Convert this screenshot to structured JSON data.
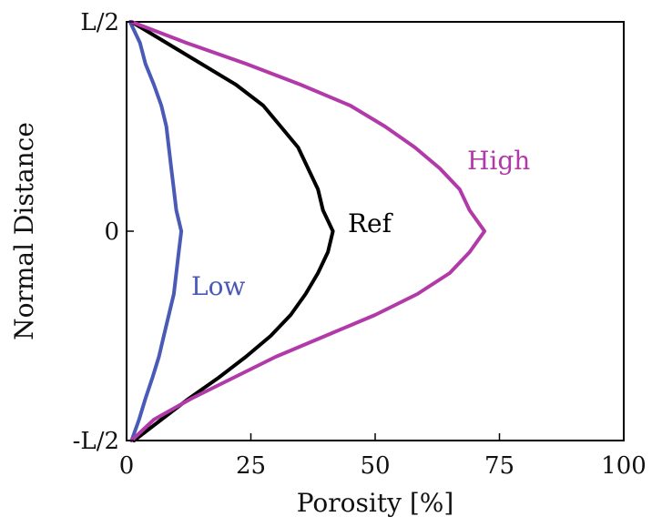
{
  "chart_data": {
    "type": "line",
    "title": "",
    "xlabel": "Porosity [%]",
    "ylabel": "Normal Distance",
    "xlim": [
      0,
      100
    ],
    "ylim": [
      -0.5,
      0.5
    ],
    "x_ticks": [
      0,
      25,
      50,
      75,
      100
    ],
    "x_tick_labels": [
      "0",
      "25",
      "50",
      "75",
      "100"
    ],
    "y_ticks": [
      -0.5,
      0,
      0.5
    ],
    "y_tick_labels": [
      "-L/2",
      "0",
      "L/2"
    ],
    "grid": false,
    "legend": "none",
    "series": [
      {
        "name": "Low",
        "color": "#4a5bb7",
        "points": [
          [
            0.7,
            0.5
          ],
          [
            2.7,
            0.45
          ],
          [
            3.8,
            0.4
          ],
          [
            5.5,
            0.35
          ],
          [
            7.0,
            0.3
          ],
          [
            8.0,
            0.25
          ],
          [
            8.5,
            0.2
          ],
          [
            9.0,
            0.15
          ],
          [
            9.5,
            0.1
          ],
          [
            10.0,
            0.05
          ],
          [
            11.0,
            0.0
          ],
          [
            10.5,
            -0.05
          ],
          [
            10.0,
            -0.1
          ],
          [
            9.5,
            -0.15
          ],
          [
            8.5,
            -0.2
          ],
          [
            7.5,
            -0.25
          ],
          [
            6.5,
            -0.3
          ],
          [
            5.2,
            -0.35
          ],
          [
            3.8,
            -0.4
          ],
          [
            2.5,
            -0.45
          ],
          [
            1.0,
            -0.5
          ]
        ]
      },
      {
        "name": "Ref",
        "color": "#000000",
        "points": [
          [
            1.0,
            0.5
          ],
          [
            8.0,
            0.45
          ],
          [
            15.0,
            0.4
          ],
          [
            22.0,
            0.35
          ],
          [
            27.5,
            0.3
          ],
          [
            31.0,
            0.25
          ],
          [
            34.5,
            0.2
          ],
          [
            36.5,
            0.15
          ],
          [
            38.5,
            0.1
          ],
          [
            39.5,
            0.05
          ],
          [
            41.5,
            0.0
          ],
          [
            40.5,
            -0.05
          ],
          [
            38.5,
            -0.1
          ],
          [
            36.0,
            -0.15
          ],
          [
            33.0,
            -0.2
          ],
          [
            29.0,
            -0.25
          ],
          [
            24.0,
            -0.3
          ],
          [
            18.5,
            -0.35
          ],
          [
            12.5,
            -0.4
          ],
          [
            7.0,
            -0.45
          ],
          [
            1.5,
            -0.5
          ]
        ]
      },
      {
        "name": "High",
        "color": "#b23aa8",
        "points": [
          [
            1.0,
            0.5
          ],
          [
            12.0,
            0.45
          ],
          [
            24.0,
            0.4
          ],
          [
            35.0,
            0.35
          ],
          [
            45.0,
            0.3
          ],
          [
            52.0,
            0.25
          ],
          [
            58.0,
            0.2
          ],
          [
            63.0,
            0.15
          ],
          [
            67.0,
            0.1
          ],
          [
            69.0,
            0.05
          ],
          [
            72.0,
            0.0
          ],
          [
            69.0,
            -0.05
          ],
          [
            65.0,
            -0.1
          ],
          [
            58.5,
            -0.15
          ],
          [
            50.0,
            -0.2
          ],
          [
            40.0,
            -0.25
          ],
          [
            30.0,
            -0.3
          ],
          [
            21.5,
            -0.35
          ],
          [
            13.0,
            -0.4
          ],
          [
            5.5,
            -0.45
          ],
          [
            1.0,
            -0.5
          ]
        ]
      }
    ],
    "annotations": [
      {
        "text": "High",
        "series": "High",
        "x": 68.5,
        "y": 0.17
      },
      {
        "text": "Ref",
        "series": "Ref",
        "x": 44.5,
        "y": 0.02
      },
      {
        "text": "Low",
        "series": "Low",
        "x": 13.0,
        "y": -0.13
      }
    ]
  }
}
